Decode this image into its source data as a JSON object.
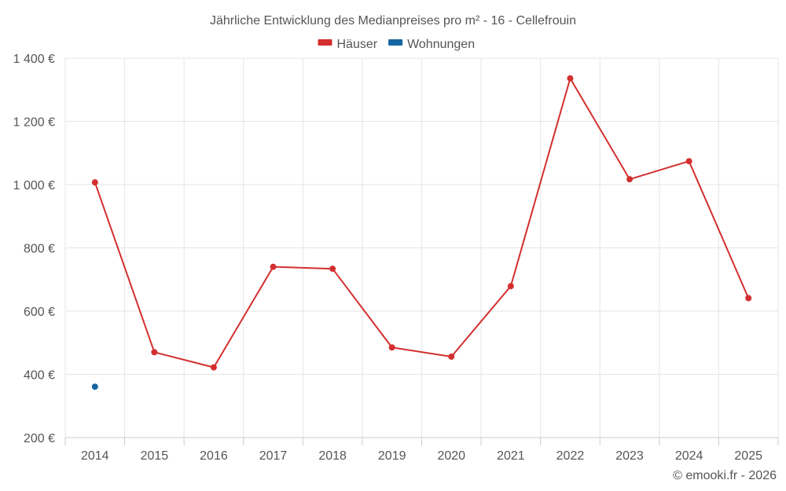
{
  "chart_data": {
    "type": "line",
    "title": "Jährliche Entwicklung des Medianpreises pro m² - 16 - Cellefrouin",
    "categories": [
      "2014",
      "2015",
      "2016",
      "2017",
      "2018",
      "2019",
      "2020",
      "2021",
      "2022",
      "2023",
      "2024",
      "2025"
    ],
    "series": [
      {
        "name": "Häuser",
        "color": "#d32f2f",
        "values": [
          1007,
          470,
          422,
          740,
          734,
          485,
          456,
          679,
          1336,
          1017,
          1074,
          641
        ]
      },
      {
        "name": "Wohnungen",
        "color": "#1565a0",
        "values": [
          361,
          null,
          null,
          null,
          null,
          null,
          null,
          null,
          null,
          null,
          null,
          null
        ]
      }
    ],
    "ylim": [
      200,
      1400
    ],
    "yticks": [
      {
        "value": 200,
        "label": "200 €"
      },
      {
        "value": 400,
        "label": "400 €"
      },
      {
        "value": 600,
        "label": "600 €"
      },
      {
        "value": 800,
        "label": "800 €"
      },
      {
        "value": 1000,
        "label": "1 000 €"
      },
      {
        "value": 1200,
        "label": "1 200 €"
      },
      {
        "value": 1400,
        "label": "1 400 €"
      }
    ],
    "xlabel": "",
    "ylabel": "",
    "grid": true,
    "legend_position": "top-center"
  },
  "credit": "© emooki.fr - 2026"
}
